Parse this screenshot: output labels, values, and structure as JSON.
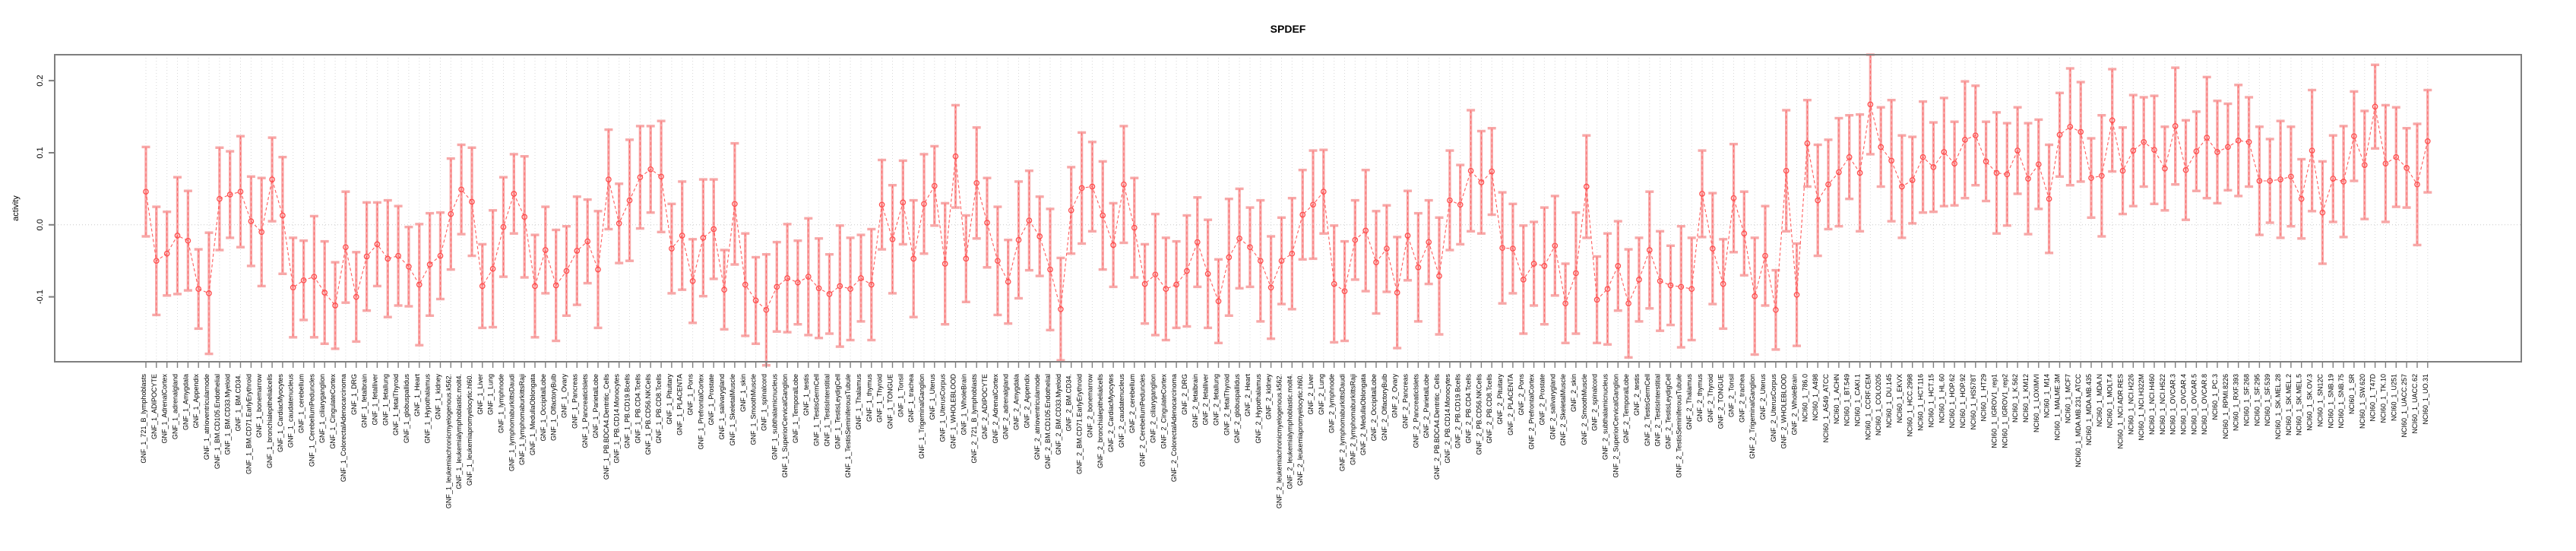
{
  "page": {
    "title": "SPDEF"
  },
  "chart_data": {
    "type": "scatter",
    "subtype": "points-with-errorbars-dashed-line",
    "title": "SPDEF",
    "xlabel": "",
    "ylabel": "activity",
    "ylim": [
      -0.19,
      0.236
    ],
    "yticks": [
      -0.1,
      0.0,
      0.1,
      0.2
    ],
    "ytick_labels": [
      "-0.1",
      "0.0",
      "0.1",
      "0.2"
    ],
    "grid": {
      "vertical_dotted_per_category": true,
      "zero_line_dotted": true,
      "color": "#d8d8d8"
    },
    "legend_position": "none",
    "colors": {
      "point": "#ff4d4d",
      "line": "#ff5c5c",
      "errorbar_fill": "#f7a8a8",
      "errorbar_dash": "#ff6b6b",
      "axis": "#7f7f7f",
      "text": "#000000"
    },
    "categories": [
      "GNF_1_721_B_lymphoblasts",
      "GNF_1_ADIPOCYTE",
      "GNF_1_AdrenalCortex",
      "GNF_1_adrenalgland",
      "GNF_1_Amygdala",
      "GNF_1_Appendix",
      "GNF_1_atrioventricularnode",
      "GNF_1_BM.CD105.Endothelial",
      "GNF_1_BM.CD33.Myeloid",
      "GNF_1_BM.CD34.",
      "GNF_1_BM.CD71.EarlyErythroid",
      "GNF_1_bonemarrow",
      "GNF_1_bronchialepithelialcells",
      "GNF_1_CardiacMyocytes",
      "GNF_1_caudatenucleus",
      "GNF_1_cerebellum",
      "GNF_1_CerebellumPeduncles",
      "GNF_1_ciliaryganglion",
      "GNF_1_CingulateCortex",
      "GNF_1_ColorectalAdenocarcinoma",
      "GNF_1_DRG",
      "GNF_1_fetalbrain",
      "GNF_1_fetalliver",
      "GNF_1_fetallung",
      "GNF_1_fetalThyroid",
      "GNF_1_globuspallidus",
      "GNF_1_Heart",
      "GNF_1_Hypothalamus",
      "GNF_1_kidney",
      "GNF_1_leukemiachronicmyelogenous.k562.",
      "GNF_1_leukemialymphoblastic.molt4.",
      "GNF_1_leukemiapromyelocytic.hl60.",
      "GNF_1_Liver",
      "GNF_1_Lung",
      "GNF_1_lymphnode",
      "GNF_1_lymphomaburkittsDaudi",
      "GNF_1_lymphomaburkittsRaji",
      "GNF_1_MedullaOblongata",
      "GNF_1_OccipitalLobe",
      "GNF_1_OlfactoryBulb",
      "GNF_1_Ovary",
      "GNF_1_Pancreas",
      "GNF_1_PancreaticIslets",
      "GNF_1_ParietalLobe",
      "GNF_1_PB.BDCA4.Dentritic_Cells",
      "GNF_1_PB.CD14.Monocytes",
      "GNF_1_PB.CD19.Bcells",
      "GNF_1_PB.CD4.Tcells",
      "GNF_1_PB.CD56.NKCells",
      "GNF_1_PB.CD8.Tcells",
      "GNF_1_Pituitary",
      "GNF_1_PLACENTA",
      "GNF_1_Pons",
      "GNF_1_PrefrontalCortex",
      "GNF_1_Prostate",
      "GNF_1_salivarygland",
      "GNF_1_SkeletalMuscle",
      "GNF_1_skin",
      "GNF_1_SmoothMuscle",
      "GNF_1_spinalcord",
      "GNF_1_subthalamicnucleus",
      "GNF_1_SuperiorCervicalGanglion",
      "GNF_1_TemporalLobe",
      "GNF_1_testis",
      "GNF_1_TestisGermCell",
      "GNF_1_TestisInterstitial",
      "GNF_1_TestisLeydigCell",
      "GNF_1_TestisSeminiferousTubule",
      "GNF_1_Thalamus",
      "GNF_1_thymus",
      "GNF_1_Thyroid",
      "GNF_1_TONGUE",
      "GNF_1_Tonsil",
      "GNF_1_trachea",
      "GNF_1_TrigeminalGanglion",
      "GNF_1_Uterus",
      "GNF_1_UterusCorpus",
      "GNF_1_WHOLEBLOOD",
      "GNF_1_WholeBrain",
      "GNF_2_721_B_lymphoblasts",
      "GNF_2_ADIPOCYTE",
      "GNF_2_AdrenalCortex",
      "GNF_2_adrenalgland",
      "GNF_2_Amygdala",
      "GNF_2_Appendix",
      "GNF_2_atrioventricularnode",
      "GNF_2_BM.CD105.Endothelial",
      "GNF_2_BM.CD33.Myeloid",
      "GNF_2_BM.CD34.",
      "GNF_2_BM.CD71.EarlyErythroid",
      "GNF_2_bonemarrow",
      "GNF_2_bronchialepithelialcells",
      "GNF_2_CardiacMyocytes",
      "GNF_2_caudatenucleus",
      "GNF_2_cerebellum",
      "GNF_2_CerebellumPeduncles",
      "GNF_2_ciliaryganglion",
      "GNF_2_CingulateCortex",
      "GNF_2_ColorectalAdenocarcinoma",
      "GNF_2_DRG",
      "GNF_2_fetalbrain",
      "GNF_2_fetalliver",
      "GNF_2_fetallung",
      "GNF_2_fetalThyroid",
      "GNF_2_globuspallidus",
      "GNF_2_Heart",
      "GNF_2_Hypothalamus",
      "GNF_2_kidney",
      "GNF_2_leukemiachronicmyelogenous.k562.",
      "GNF_2_leukemialymphoblastic.molt4.",
      "GNF_2_leukemiapromyelocytic.hl60.",
      "GNF_2_Liver",
      "GNF_2_Lung",
      "GNF_2_lymphnode",
      "GNF_2_lymphomaburkittsDaudi",
      "GNF_2_lymphomaburkittsRaji",
      "GNF_2_MedullaOblongata",
      "GNF_2_OccipitalLobe",
      "GNF_2_OlfactoryBulb",
      "GNF_2_Ovary",
      "GNF_2_Pancreas",
      "GNF_2_PancreaticIslets",
      "GNF_2_ParietalLobe",
      "GNF_2_PB.BDCA4.Dentritic_Cells",
      "GNF_2_PB.CD14.Monocytes",
      "GNF_2_PB.CD19.Bcells",
      "GNF_2_PB.CD4.Tcells",
      "GNF_2_PB.CD56.NKCells",
      "GNF_2_PB.CD8.Tcells",
      "GNF_2_Pituitary",
      "GNF_2_PLACENTA",
      "GNF_2_Pons",
      "GNF_2_PrefrontalCortex",
      "GNF_2_Prostate",
      "GNF_2_salivarygland",
      "GNF_2_SkeletalMuscle",
      "GNF_2_skin",
      "GNF_2_SmoothMuscle",
      "GNF_2_spinalcord",
      "GNF_2_subthalamicnucleus",
      "GNF_2_SuperiorCervicalGanglion",
      "GNF_2_TemporalLobe",
      "GNF_2_testis",
      "GNF_2_TestisGermCell",
      "GNF_2_TestisInterstitial",
      "GNF_2_TestisLeydigCell",
      "GNF_2_TestisSeminiferousTubule",
      "GNF_2_Thalamus",
      "GNF_2_thymus",
      "GNF_2_Thyroid",
      "GNF_2_TONGUE",
      "GNF_2_Tonsil",
      "GNF_2_trachea",
      "GNF_2_TrigeminalGanglion",
      "GNF_2_Uterus",
      "GNF_2_UterusCorpus",
      "GNF_2_WHOLEBLOOD",
      "GNF_2_WholeBrain",
      "NCI60_1_786.0",
      "NCI60_1_A498",
      "NCI60_1_A549_ATCC",
      "NCI60_1_ACHN",
      "NCI60_1_BT.549",
      "NCI60_1_CAKI.1",
      "NCI60_1_CCRF.CEM",
      "NCI60_1_COLO205",
      "NCI60_1_DU.145",
      "NCI60_1_EKVX",
      "NCI60_1_HCC.2998",
      "NCI60_1_HCT.116",
      "NCI60_1_HCT.15",
      "NCI60_1_HL.60",
      "NCI60_1_HOP.62",
      "NCI60_1_HOP.92",
      "NCI60_1_HS578T",
      "NCI60_1_HT29",
      "NCI60_1_IGROV1_rep1",
      "NCI60_1_IGROV1_rep2",
      "NCI60_1_K.562",
      "NCI60_1_KM12",
      "NCI60_1_LOXIMVI",
      "NCI60_1_M14",
      "NCI60_1_MALME.3M",
      "NCI60_1_MCF7",
      "NCI60_1_MDA.MB.231_ATCC",
      "NCI60_1_MDA.MB.435",
      "NCI60_1_MDA.N",
      "NCI60_1_MOLT.4",
      "NCI60_1_NCI.ADR.RES",
      "NCI60_1_NCI.H226",
      "NCI60_1_NCI.H322M",
      "NCI60_1_NCI.H460",
      "NCI60_1_NCI.H522",
      "NCI60_1_OVCAR.3",
      "NCI60_1_OVCAR.4",
      "NCI60_1_OVCAR.5",
      "NCI60_1_OVCAR.8",
      "NCI60_1_PC.3",
      "NCI60_1_RPMI.8226",
      "NCI60_1_RXF.393",
      "NCI60_1_SF.268",
      "NCI60_1_SF.295",
      "NCI60_1_SF.539",
      "NCI60_1_SK.MEL.28",
      "NCI60_1_SK.MEL.2",
      "NCI60_1_SK.MEL.5",
      "NCI60_1_SK.OV.3",
      "NCI60_1_SN12C",
      "NCI60_1_SNB.19",
      "NCI60_1_SNB.75",
      "NCI60_1_SR",
      "NCI60_1_SW.620",
      "NCI60_1_T47D",
      "NCI60_1_TK.10",
      "NCI60_1_U251",
      "NCI60_1_UACC.257",
      "NCI60_1_UACC.62",
      "NCI60_1_UO.31"
    ],
    "values": [
      0.046,
      -0.05,
      -0.04,
      -0.015,
      -0.022,
      -0.089,
      -0.095,
      0.036,
      0.042,
      0.046,
      0.005,
      -0.01,
      0.063,
      0.013,
      -0.087,
      -0.077,
      -0.072,
      -0.094,
      -0.112,
      -0.031,
      -0.1,
      -0.044,
      -0.027,
      -0.047,
      -0.043,
      -0.058,
      -0.083,
      -0.055,
      -0.043,
      0.015,
      0.049,
      0.032,
      -0.085,
      -0.061,
      -0.003,
      0.043,
      0.011,
      -0.085,
      -0.035,
      -0.084,
      -0.064,
      -0.036,
      -0.023,
      -0.062,
      0.063,
      0.002,
      0.034,
      0.066,
      0.077,
      0.067,
      -0.033,
      -0.015,
      -0.078,
      -0.018,
      -0.006,
      -0.09,
      0.029,
      -0.083,
      -0.105,
      -0.118,
      -0.086,
      -0.074,
      -0.08,
      -0.072,
      -0.088,
      -0.096,
      -0.085,
      -0.089,
      -0.074,
      -0.083,
      0.028,
      -0.02,
      0.031,
      -0.047,
      0.029,
      0.054,
      -0.054,
      0.095,
      -0.047,
      0.058,
      0.003,
      -0.05,
      -0.079,
      -0.021,
      0.006,
      -0.016,
      -0.062,
      -0.117,
      0.02,
      0.051,
      0.053,
      0.013,
      -0.028,
      0.056,
      -0.004,
      -0.082,
      -0.069,
      -0.089,
      -0.083,
      -0.064,
      -0.024,
      -0.068,
      -0.106,
      -0.045,
      -0.019,
      -0.031,
      -0.05,
      -0.087,
      -0.05,
      -0.04,
      0.014,
      0.028,
      0.046,
      -0.082,
      -0.092,
      -0.021,
      -0.008,
      -0.052,
      -0.033,
      -0.094,
      -0.015,
      -0.059,
      -0.024,
      -0.071,
      0.034,
      0.028,
      0.075,
      0.059,
      0.074,
      -0.032,
      -0.033,
      -0.076,
      -0.054,
      -0.057,
      -0.029,
      -0.109,
      -0.067,
      0.053,
      -0.104,
      -0.089,
      -0.057,
      -0.109,
      -0.076,
      -0.035,
      -0.078,
      -0.084,
      -0.086,
      -0.089,
      0.043,
      -0.033,
      -0.082,
      0.037,
      -0.012,
      -0.099,
      -0.043,
      -0.118,
      0.075,
      -0.097,
      0.113,
      0.034,
      0.056,
      0.073,
      0.094,
      0.072,
      0.167,
      0.108,
      0.089,
      0.053,
      0.062,
      0.094,
      0.08,
      0.101,
      0.085,
      0.118,
      0.124,
      0.088,
      0.072,
      0.07,
      0.103,
      0.064,
      0.084,
      0.036,
      0.125,
      0.136,
      0.129,
      0.065,
      0.068,
      0.145,
      0.075,
      0.103,
      0.115,
      0.104,
      0.078,
      0.137,
      0.076,
      0.102,
      0.121,
      0.101,
      0.108,
      0.117,
      0.115,
      0.061,
      0.061,
      0.063,
      0.067,
      0.036,
      0.103,
      0.017,
      0.064,
      0.06,
      0.123,
      0.083,
      0.164,
      0.085,
      0.094,
      0.079,
      0.056,
      0.116
    ],
    "errors": [
      0.062,
      0.075,
      0.058,
      0.081,
      0.069,
      0.055,
      0.084,
      0.071,
      0.06,
      0.077,
      0.062,
      0.075,
      0.058,
      0.081,
      0.069,
      0.055,
      0.084,
      0.071,
      0.06,
      0.077,
      0.062,
      0.075,
      0.058,
      0.081,
      0.069,
      0.055,
      0.084,
      0.071,
      0.06,
      0.077,
      0.062,
      0.075,
      0.058,
      0.081,
      0.069,
      0.055,
      0.084,
      0.071,
      0.06,
      0.077,
      0.062,
      0.075,
      0.058,
      0.081,
      0.069,
      0.055,
      0.084,
      0.071,
      0.06,
      0.077,
      0.062,
      0.075,
      0.058,
      0.081,
      0.069,
      0.055,
      0.084,
      0.071,
      0.06,
      0.077,
      0.062,
      0.075,
      0.058,
      0.081,
      0.069,
      0.055,
      0.084,
      0.071,
      0.06,
      0.077,
      0.062,
      0.075,
      0.058,
      0.081,
      0.069,
      0.055,
      0.084,
      0.071,
      0.06,
      0.077,
      0.062,
      0.075,
      0.058,
      0.081,
      0.069,
      0.055,
      0.084,
      0.071,
      0.06,
      0.077,
      0.062,
      0.075,
      0.058,
      0.081,
      0.069,
      0.055,
      0.084,
      0.071,
      0.06,
      0.077,
      0.062,
      0.075,
      0.058,
      0.081,
      0.069,
      0.055,
      0.084,
      0.071,
      0.06,
      0.077,
      0.062,
      0.075,
      0.058,
      0.081,
      0.069,
      0.055,
      0.084,
      0.071,
      0.06,
      0.077,
      0.062,
      0.075,
      0.058,
      0.081,
      0.069,
      0.055,
      0.084,
      0.071,
      0.06,
      0.077,
      0.062,
      0.075,
      0.058,
      0.081,
      0.069,
      0.055,
      0.084,
      0.071,
      0.06,
      0.077,
      0.062,
      0.075,
      0.058,
      0.081,
      0.069,
      0.055,
      0.084,
      0.071,
      0.06,
      0.077,
      0.062,
      0.075,
      0.058,
      0.081,
      0.069,
      0.055,
      0.084,
      0.071,
      0.06,
      0.077,
      0.062,
      0.075,
      0.058,
      0.081,
      0.069,
      0.055,
      0.084,
      0.071,
      0.06,
      0.077,
      0.062,
      0.075,
      0.058,
      0.081,
      0.069,
      0.055,
      0.084,
      0.071,
      0.06,
      0.077,
      0.062,
      0.075,
      0.058,
      0.081,
      0.069,
      0.055,
      0.084,
      0.071,
      0.06,
      0.077,
      0.062,
      0.075,
      0.058,
      0.081,
      0.069,
      0.055,
      0.084,
      0.071,
      0.06,
      0.077,
      0.062,
      0.075,
      0.058,
      0.081,
      0.069,
      0.055,
      0.084,
      0.071,
      0.06,
      0.077,
      0.062,
      0.075,
      0.058,
      0.081,
      0.069,
      0.055,
      0.084,
      0.071
    ]
  }
}
